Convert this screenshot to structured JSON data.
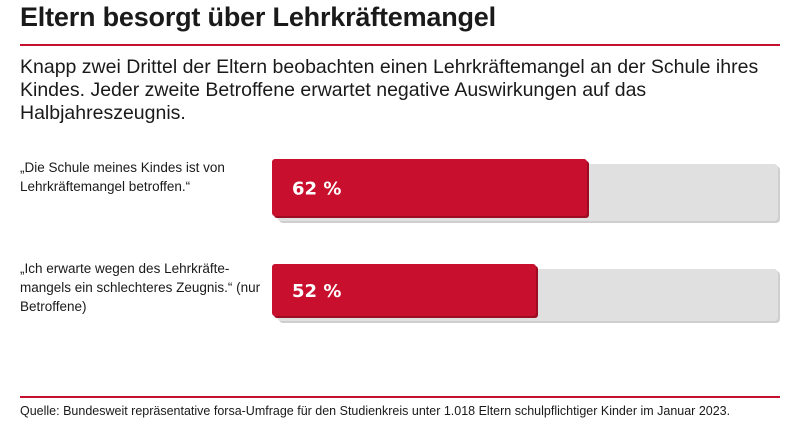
{
  "title": "Eltern besorgt über Lehrkräftemangel",
  "subtitle": "Knapp zwei Drittel der Eltern beobachten einen Lehrkräftemangel an der Schule ihres Kindes. Jeder zweite Betroffene erwartet negative Auswirkungen auf das Halbjahreszeugnis.",
  "colors": {
    "accent": "#c4122f",
    "bar": "#c8102e",
    "bar_shadow": "#9c0d24",
    "track": "#e0e0e0",
    "track_shadow": "#cfcfcf"
  },
  "chart_data": {
    "type": "bar",
    "orientation": "horizontal",
    "categories": [
      "„Die Schule meines Kindes ist von Lehrkräftemangel betroffen.“",
      "„Ich erwarte wegen des Lehrkräfte-mangels ein schlechteres Zeugnis.“ (nur Betroffene)"
    ],
    "values": [
      62,
      52
    ],
    "value_labels": [
      "62 %",
      "52 %"
    ],
    "unit": "%",
    "xlim": [
      0,
      100
    ],
    "grid": false
  },
  "rows": [
    {
      "label": "„Die Schule meines Kindes ist von Lehrkräftemangel betroffen.“"
    },
    {
      "label": "„Ich erwarte wegen des Lehrkräfte-mangels ein schlechteres Zeugnis.“ (nur Betroffene)"
    }
  ],
  "footer": "Quelle: Bundesweit repräsentative forsa-Umfrage für den Studienkreis unter 1.018 Eltern schulpflichtiger Kinder im Januar 2023."
}
